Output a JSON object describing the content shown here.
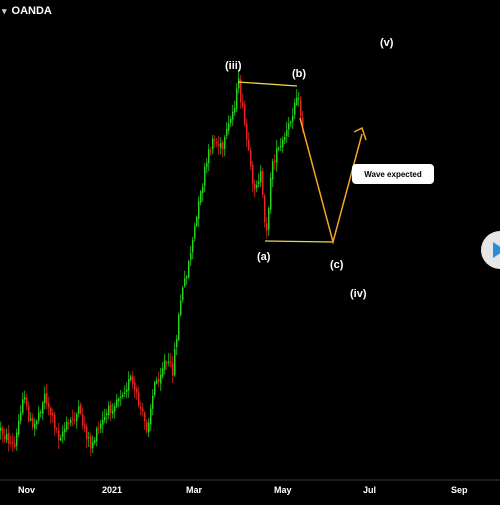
{
  "header": {
    "provider": "OANDA",
    "provider_arrow": "▾"
  },
  "callout": {
    "text": "Wave expected"
  },
  "colors": {
    "background": "#000000",
    "up": "#29d41f",
    "down": "#e5271f",
    "projection": "#f5a623",
    "trendline": "#e8d84a",
    "play_button": "#2a8bd6"
  },
  "controls": {
    "play_button_icon": "play-icon"
  },
  "chart_data": {
    "type": "candlestick",
    "x_tick_labels": [
      "Nov",
      "2021",
      "Mar",
      "May",
      "Jul",
      "Sep"
    ],
    "wave_labels": [
      "(iii)",
      "(b)",
      "(a)",
      "(c)",
      "(iv)",
      "(v)"
    ],
    "annotation": "Wave expected",
    "grid": false,
    "legend": "none",
    "trend": [
      {
        "t": 0,
        "p": 430
      },
      {
        "t": 14,
        "p": 448
      },
      {
        "t": 22,
        "p": 395
      },
      {
        "t": 32,
        "p": 430
      },
      {
        "t": 44,
        "p": 395
      },
      {
        "t": 58,
        "p": 436
      },
      {
        "t": 78,
        "p": 412
      },
      {
        "t": 90,
        "p": 446
      },
      {
        "t": 104,
        "p": 418
      },
      {
        "t": 116,
        "p": 398
      },
      {
        "t": 130,
        "p": 380
      },
      {
        "t": 146,
        "p": 428
      },
      {
        "t": 154,
        "p": 385
      },
      {
        "t": 164,
        "p": 362
      },
      {
        "t": 172,
        "p": 370
      },
      {
        "t": 180,
        "p": 300
      },
      {
        "t": 188,
        "p": 262
      },
      {
        "t": 196,
        "p": 218
      },
      {
        "t": 204,
        "p": 172
      },
      {
        "t": 212,
        "p": 138
      },
      {
        "t": 222,
        "p": 150
      },
      {
        "t": 232,
        "p": 112
      },
      {
        "t": 238,
        "p": 84
      },
      {
        "t": 246,
        "p": 140
      },
      {
        "t": 252,
        "p": 188
      },
      {
        "t": 260,
        "p": 175
      },
      {
        "t": 265,
        "p": 238
      },
      {
        "t": 272,
        "p": 160
      },
      {
        "t": 280,
        "p": 148
      },
      {
        "t": 288,
        "p": 128
      },
      {
        "t": 296,
        "p": 92
      },
      {
        "t": 303,
        "p": 130
      }
    ]
  }
}
